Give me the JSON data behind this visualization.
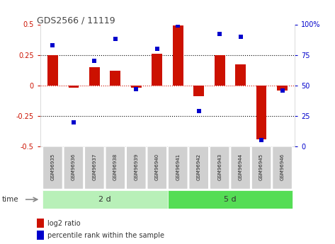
{
  "title": "GDS2566 / 11119",
  "samples": [
    "GSM96935",
    "GSM96936",
    "GSM96937",
    "GSM96938",
    "GSM96939",
    "GSM96940",
    "GSM96941",
    "GSM96942",
    "GSM96943",
    "GSM96944",
    "GSM96945",
    "GSM96946"
  ],
  "log2_ratio": [
    0.25,
    -0.02,
    0.15,
    0.12,
    -0.02,
    0.26,
    0.49,
    -0.09,
    0.25,
    0.17,
    -0.44,
    -0.04
  ],
  "percentile_rank": [
    83,
    20,
    70,
    88,
    47,
    80,
    99,
    29,
    92,
    90,
    5,
    46
  ],
  "group1_label": "2 d",
  "group2_label": "5 d",
  "group1_count": 6,
  "group2_count": 6,
  "bar_color": "#cc1100",
  "dot_color": "#0000cc",
  "ylim_left": [
    -0.5,
    0.5
  ],
  "ylim_right": [
    0,
    100
  ],
  "yticks_left": [
    -0.5,
    -0.25,
    0.0,
    0.25,
    0.5
  ],
  "yticks_right": [
    0,
    25,
    50,
    75,
    100
  ],
  "hlines": [
    -0.25,
    0.0,
    0.25
  ],
  "legend_bar_label": "log2 ratio",
  "legend_dot_label": "percentile rank within the sample",
  "group1_color": "#b8f0b8",
  "group2_color": "#55dd55",
  "bar_color_hex": "#cc1100",
  "dot_color_hex": "#0000cc",
  "title_color": "#444444",
  "left_tick_color": "#cc1100",
  "right_tick_color": "#0000cc",
  "time_label": "time"
}
